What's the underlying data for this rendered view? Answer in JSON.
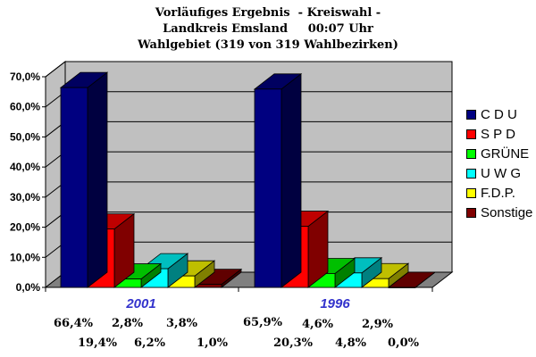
{
  "title": {
    "line1": "Vorläufiges Ergebnis  - Kreiswahl -",
    "line2": "Landkreis Emsland     00:07 Uhr",
    "line3": "Wahlgebiet (319 von 319 Wahlbezirken)"
  },
  "legend": [
    {
      "label": "C D U",
      "color": "#000080"
    },
    {
      "label": "S P D",
      "color": "#ff0000"
    },
    {
      "label": "GRÜNE",
      "color": "#00ff00"
    },
    {
      "label": "U W G",
      "color": "#00ffff"
    },
    {
      "label": "F.D.P.",
      "color": "#ffff00"
    },
    {
      "label": "Sonstige",
      "color": "#800000"
    }
  ],
  "value_labels": {
    "g2001_row1": [
      "66,4%",
      "2,8%",
      "3,8%"
    ],
    "g2001_row2": [
      "19,4%",
      "6,2%",
      "1,0%"
    ],
    "g1996_row1": [
      "65,9%",
      "4,6%",
      "2,9%"
    ],
    "g1996_row2": [
      "20,3%",
      "4,8%",
      "0,0%"
    ]
  },
  "chart_data": {
    "type": "bar",
    "title": "Vorläufiges Ergebnis - Kreiswahl - Landkreis Emsland 00:07 Uhr Wahlgebiet (319 von 319 Wahlbezirken)",
    "categories": [
      "2001",
      "1996"
    ],
    "series": [
      {
        "name": "C D U",
        "values": [
          66.4,
          65.9
        ],
        "color": "#000080"
      },
      {
        "name": "S P D",
        "values": [
          19.4,
          20.3
        ],
        "color": "#ff0000"
      },
      {
        "name": "GRÜNE",
        "values": [
          2.8,
          4.6
        ],
        "color": "#00ff00"
      },
      {
        "name": "U W G",
        "values": [
          6.2,
          4.8
        ],
        "color": "#00ffff"
      },
      {
        "name": "F.D.P.",
        "values": [
          3.8,
          2.9
        ],
        "color": "#ffff00"
      },
      {
        "name": "Sonstige",
        "values": [
          1.0,
          0.0
        ],
        "color": "#800000"
      }
    ],
    "yticks": [
      "0,0%",
      "10,0%",
      "20,0%",
      "30,0%",
      "40,0%",
      "50,0%",
      "60,0%",
      "70,0%"
    ],
    "ylim": [
      0,
      70
    ],
    "xlabel": "",
    "ylabel": "",
    "grid": true,
    "legend_position": "right",
    "style": "3d-clustered-column"
  }
}
